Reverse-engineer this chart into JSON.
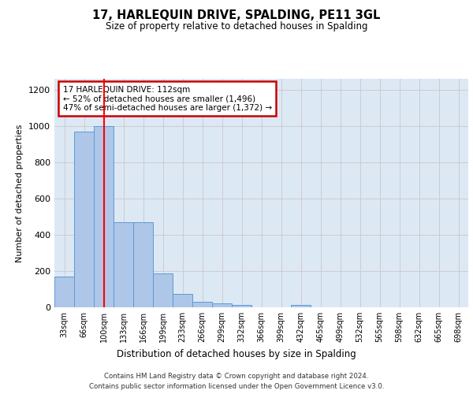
{
  "title": "17, HARLEQUIN DRIVE, SPALDING, PE11 3GL",
  "subtitle": "Size of property relative to detached houses in Spalding",
  "xlabel": "Distribution of detached houses by size in Spalding",
  "ylabel": "Number of detached properties",
  "categories": [
    "33sqm",
    "66sqm",
    "100sqm",
    "133sqm",
    "166sqm",
    "199sqm",
    "233sqm",
    "266sqm",
    "299sqm",
    "332sqm",
    "366sqm",
    "399sqm",
    "432sqm",
    "465sqm",
    "499sqm",
    "532sqm",
    "565sqm",
    "598sqm",
    "632sqm",
    "665sqm",
    "698sqm"
  ],
  "values": [
    170,
    970,
    1000,
    470,
    470,
    185,
    75,
    30,
    22,
    14,
    0,
    0,
    14,
    0,
    0,
    0,
    0,
    0,
    0,
    0,
    0
  ],
  "bar_color": "#aec6e8",
  "bar_edge_color": "#5b9bd5",
  "red_line_x": 2,
  "annotation_text": "17 HARLEQUIN DRIVE: 112sqm\n← 52% of detached houses are smaller (1,496)\n47% of semi-detached houses are larger (1,372) →",
  "annotation_box_color": "#ffffff",
  "annotation_box_edge_color": "#cc0000",
  "ylim": [
    0,
    1260
  ],
  "yticks": [
    0,
    200,
    400,
    600,
    800,
    1000,
    1200
  ],
  "grid_color": "#cccccc",
  "background_color": "#dde8f5",
  "footer_line1": "Contains HM Land Registry data © Crown copyright and database right 2024.",
  "footer_line2": "Contains public sector information licensed under the Open Government Licence v3.0."
}
